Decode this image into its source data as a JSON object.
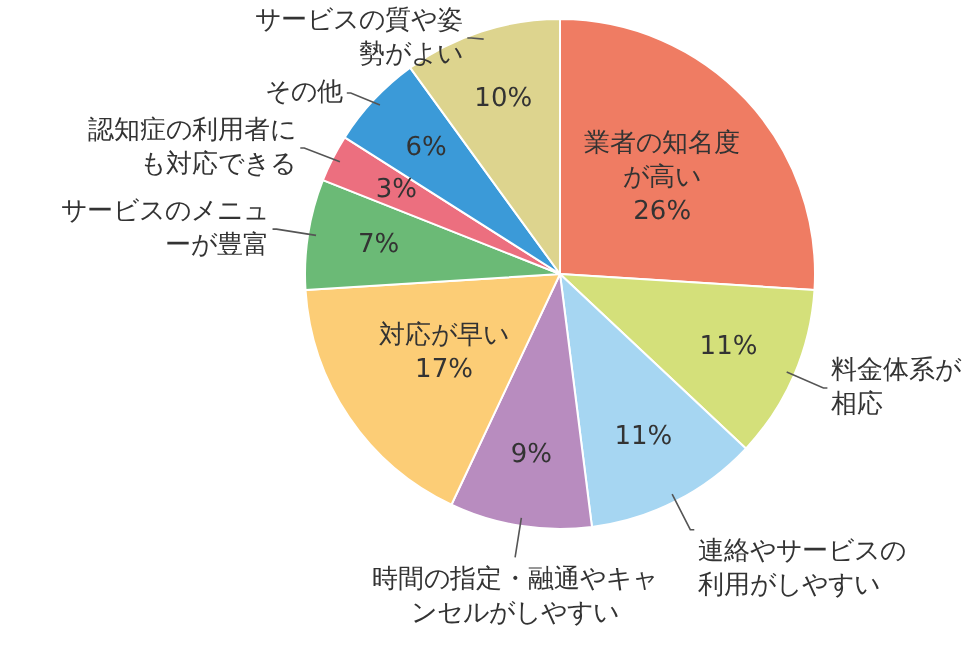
{
  "chart_data": {
    "type": "pie",
    "categories": [
      "業者の知名度が高い",
      "料金体系が相応",
      "連絡やサービスの利用がしやすい",
      "時間の指定・融通やキャンセルがしやすい",
      "対応が早い",
      "サービスのメニューが豊富",
      "認知症の利用者にも対応できる",
      "その他",
      "サービスの質や姿勢がよい"
    ],
    "values": [
      26,
      11,
      11,
      9,
      17,
      7,
      3,
      6,
      10
    ],
    "colors": [
      "#ef7c63",
      "#d4e07a",
      "#a6d6f2",
      "#b88cbf",
      "#fccd76",
      "#6bba76",
      "#ec6f7f",
      "#3b9ad8",
      "#ddd48e"
    ],
    "value_labels": [
      "26%",
      "11%",
      "11%",
      "9%",
      "17%",
      "7%",
      "3%",
      "6%",
      "10%"
    ],
    "legend": false
  }
}
